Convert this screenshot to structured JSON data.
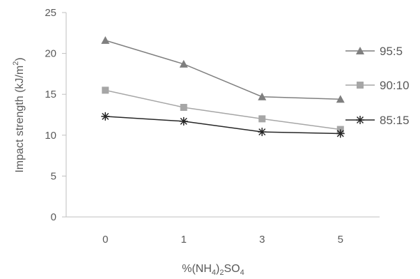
{
  "chart_data": {
    "type": "line",
    "categories": [
      "0",
      "1",
      "3",
      "5"
    ],
    "ylim": [
      0,
      25
    ],
    "yticks": [
      0,
      5,
      10,
      15,
      20,
      25
    ],
    "ylabel": {
      "main": "Impact strength (kJ/m",
      "sup": "2",
      "close": ")"
    },
    "xlabel": {
      "p1": "%(NH",
      "s1": "4",
      "p2": ")",
      "s2": "2",
      "p3": "SO",
      "s3": "4"
    },
    "grid": false,
    "legend_position": "right",
    "series": [
      {
        "name": "95:5",
        "marker": "triangle",
        "color": "#7f7f7f",
        "values": [
          21.6,
          18.7,
          14.7,
          14.4
        ]
      },
      {
        "name": "90:10",
        "marker": "square",
        "color": "#a6a6a6",
        "values": [
          15.5,
          13.4,
          12.0,
          10.7
        ]
      },
      {
        "name": "85:15",
        "marker": "star",
        "color": "#262626",
        "values": [
          12.3,
          11.7,
          10.4,
          10.2
        ]
      }
    ]
  }
}
